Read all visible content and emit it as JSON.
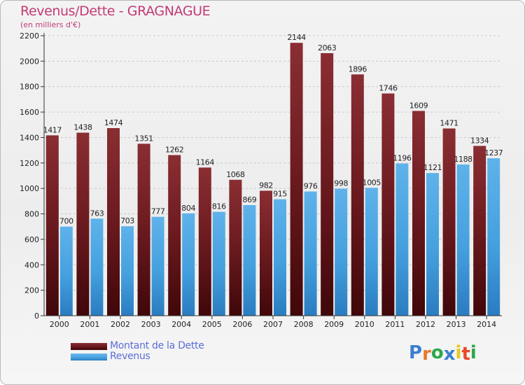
{
  "header": {
    "title": "Revenus/Dette - GRAGNAGUE",
    "subtitle": "(en milliers d'€)"
  },
  "chart_data": {
    "type": "bar",
    "title": "Revenus/Dette - GRAGNAGUE",
    "subtitle": "(en milliers d'€)",
    "xlabel": "",
    "ylabel": "",
    "ylim": [
      0,
      2200
    ],
    "yticks": [
      0,
      200,
      400,
      600,
      800,
      1000,
      1200,
      1400,
      1600,
      1800,
      2000,
      2200
    ],
    "grid": true,
    "categories": [
      "2000",
      "2001",
      "2002",
      "2003",
      "2004",
      "2005",
      "2006",
      "2007",
      "2008",
      "2009",
      "2010",
      "2011",
      "2012",
      "2013",
      "2014"
    ],
    "series": [
      {
        "name": "Montant de la Dette",
        "color": "#6b1a1e",
        "values": [
          1417,
          1438,
          1474,
          1351,
          1262,
          1164,
          1068,
          982,
          2144,
          2063,
          1896,
          1746,
          1609,
          1471,
          1334
        ]
      },
      {
        "name": "Revenus",
        "color": "#43a0e0",
        "values": [
          700,
          763,
          703,
          777,
          804,
          816,
          869,
          915,
          976,
          998,
          1005,
          1196,
          1121,
          1188,
          1237
        ]
      }
    ],
    "legend_position": "bottom-left"
  },
  "legend": {
    "items": [
      {
        "label": "Montant de la Dette",
        "color": "#6b1a1e"
      },
      {
        "label": "Revenus",
        "color": "#43a0e0"
      }
    ]
  },
  "brand": {
    "logo_text": "Proxiti",
    "letter_colors": [
      "#3a7fd0",
      "#e8782a",
      "#2aa84a",
      "#3a7fd0",
      "#e8c81a",
      "#e84a2a",
      "#2aa84a"
    ]
  }
}
